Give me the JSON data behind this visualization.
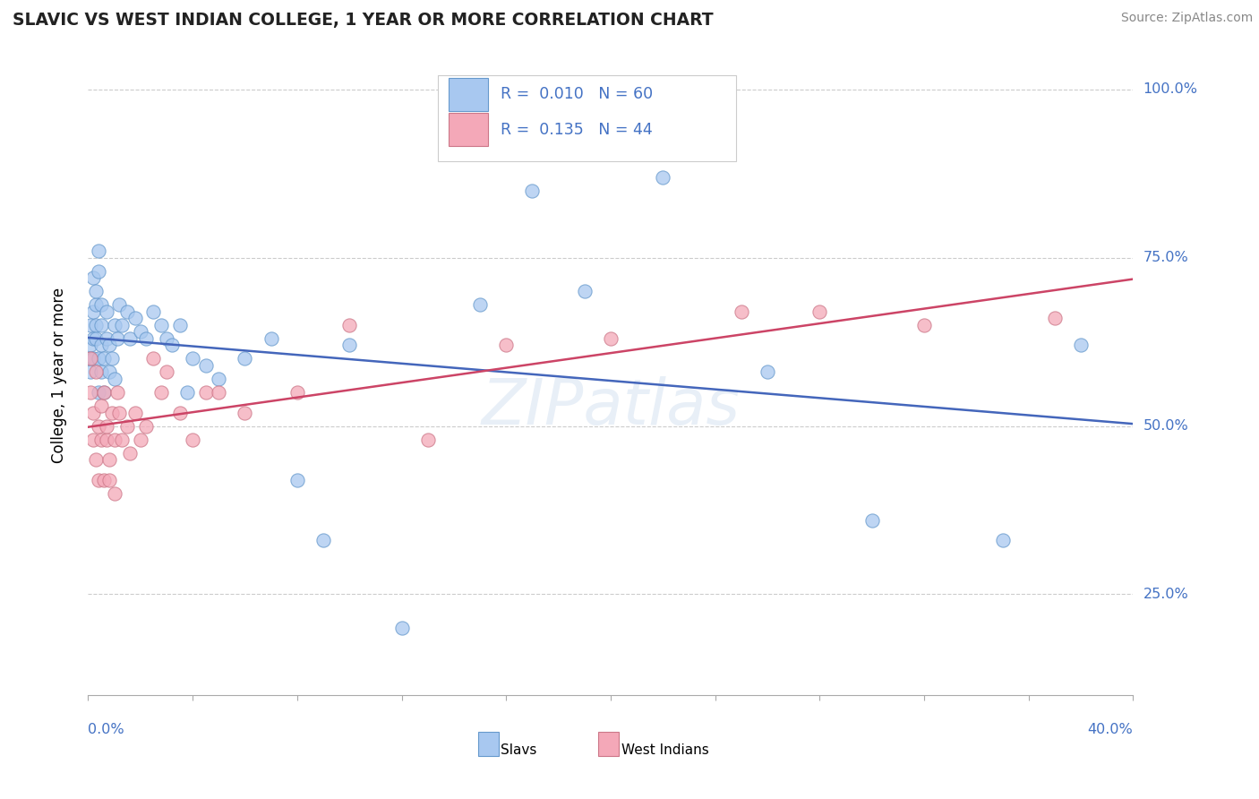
{
  "title": "SLAVIC VS WEST INDIAN COLLEGE, 1 YEAR OR MORE CORRELATION CHART",
  "source_text": "Source: ZipAtlas.com",
  "ylabel": "College, 1 year or more",
  "watermark": "ZIPatlas",
  "slavs_color": "#a8c8f0",
  "slavs_edge_color": "#6699cc",
  "west_indians_color": "#f4a8b8",
  "west_indians_edge_color": "#cc7788",
  "trend_slavs_color": "#4466bb",
  "trend_west_indians_color": "#cc4466",
  "legend_box_color": "#a8c8f0",
  "legend_box2_color": "#f4a8b8",
  "text_blue": "#4472c4",
  "grid_color": "#cccccc",
  "xmin": 0.0,
  "xmax": 0.4,
  "ymin": 0.1,
  "ymax": 1.05,
  "ytick_vals": [
    0.25,
    0.5,
    0.75,
    1.0
  ],
  "ytick_labels": [
    "25.0%",
    "50.0%",
    "75.0%",
    "100.0%"
  ],
  "slavs_x": [
    0.001,
    0.001,
    0.001,
    0.001,
    0.002,
    0.002,
    0.002,
    0.002,
    0.003,
    0.003,
    0.003,
    0.003,
    0.004,
    0.004,
    0.004,
    0.004,
    0.005,
    0.005,
    0.005,
    0.005,
    0.006,
    0.006,
    0.007,
    0.007,
    0.008,
    0.008,
    0.009,
    0.01,
    0.01,
    0.011,
    0.012,
    0.013,
    0.015,
    0.016,
    0.018,
    0.02,
    0.022,
    0.025,
    0.028,
    0.03,
    0.032,
    0.035,
    0.038,
    0.04,
    0.045,
    0.05,
    0.06,
    0.07,
    0.08,
    0.09,
    0.1,
    0.12,
    0.15,
    0.17,
    0.19,
    0.22,
    0.26,
    0.3,
    0.35,
    0.38
  ],
  "slavs_y": [
    0.62,
    0.65,
    0.6,
    0.58,
    0.67,
    0.72,
    0.63,
    0.6,
    0.68,
    0.65,
    0.7,
    0.63,
    0.73,
    0.76,
    0.6,
    0.55,
    0.65,
    0.58,
    0.62,
    0.68,
    0.6,
    0.55,
    0.63,
    0.67,
    0.58,
    0.62,
    0.6,
    0.65,
    0.57,
    0.63,
    0.68,
    0.65,
    0.67,
    0.63,
    0.66,
    0.64,
    0.63,
    0.67,
    0.65,
    0.63,
    0.62,
    0.65,
    0.55,
    0.6,
    0.59,
    0.57,
    0.6,
    0.63,
    0.42,
    0.33,
    0.62,
    0.2,
    0.68,
    0.85,
    0.7,
    0.87,
    0.58,
    0.36,
    0.33,
    0.62
  ],
  "wi_x": [
    0.001,
    0.001,
    0.002,
    0.002,
    0.003,
    0.003,
    0.004,
    0.004,
    0.005,
    0.005,
    0.006,
    0.006,
    0.007,
    0.007,
    0.008,
    0.008,
    0.009,
    0.01,
    0.01,
    0.011,
    0.012,
    0.013,
    0.015,
    0.016,
    0.018,
    0.02,
    0.022,
    0.025,
    0.028,
    0.03,
    0.035,
    0.04,
    0.045,
    0.05,
    0.06,
    0.08,
    0.1,
    0.13,
    0.16,
    0.2,
    0.25,
    0.28,
    0.32,
    0.37
  ],
  "wi_y": [
    0.6,
    0.55,
    0.52,
    0.48,
    0.58,
    0.45,
    0.5,
    0.42,
    0.53,
    0.48,
    0.42,
    0.55,
    0.48,
    0.5,
    0.45,
    0.42,
    0.52,
    0.48,
    0.4,
    0.55,
    0.52,
    0.48,
    0.5,
    0.46,
    0.52,
    0.48,
    0.5,
    0.6,
    0.55,
    0.58,
    0.52,
    0.48,
    0.55,
    0.55,
    0.52,
    0.55,
    0.65,
    0.48,
    0.62,
    0.63,
    0.67,
    0.67,
    0.65,
    0.66
  ]
}
